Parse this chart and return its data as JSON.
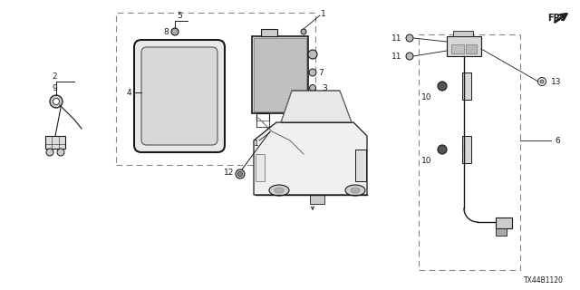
{
  "bg_color": "#ffffff",
  "fig_width": 6.4,
  "fig_height": 3.2,
  "dpi": 100,
  "diagram_code": "TX44B1120",
  "line_color": "#1a1a1a",
  "dashed_color": "#888888",
  "font_size_label": 6.5,
  "font_size_code": 5.5
}
